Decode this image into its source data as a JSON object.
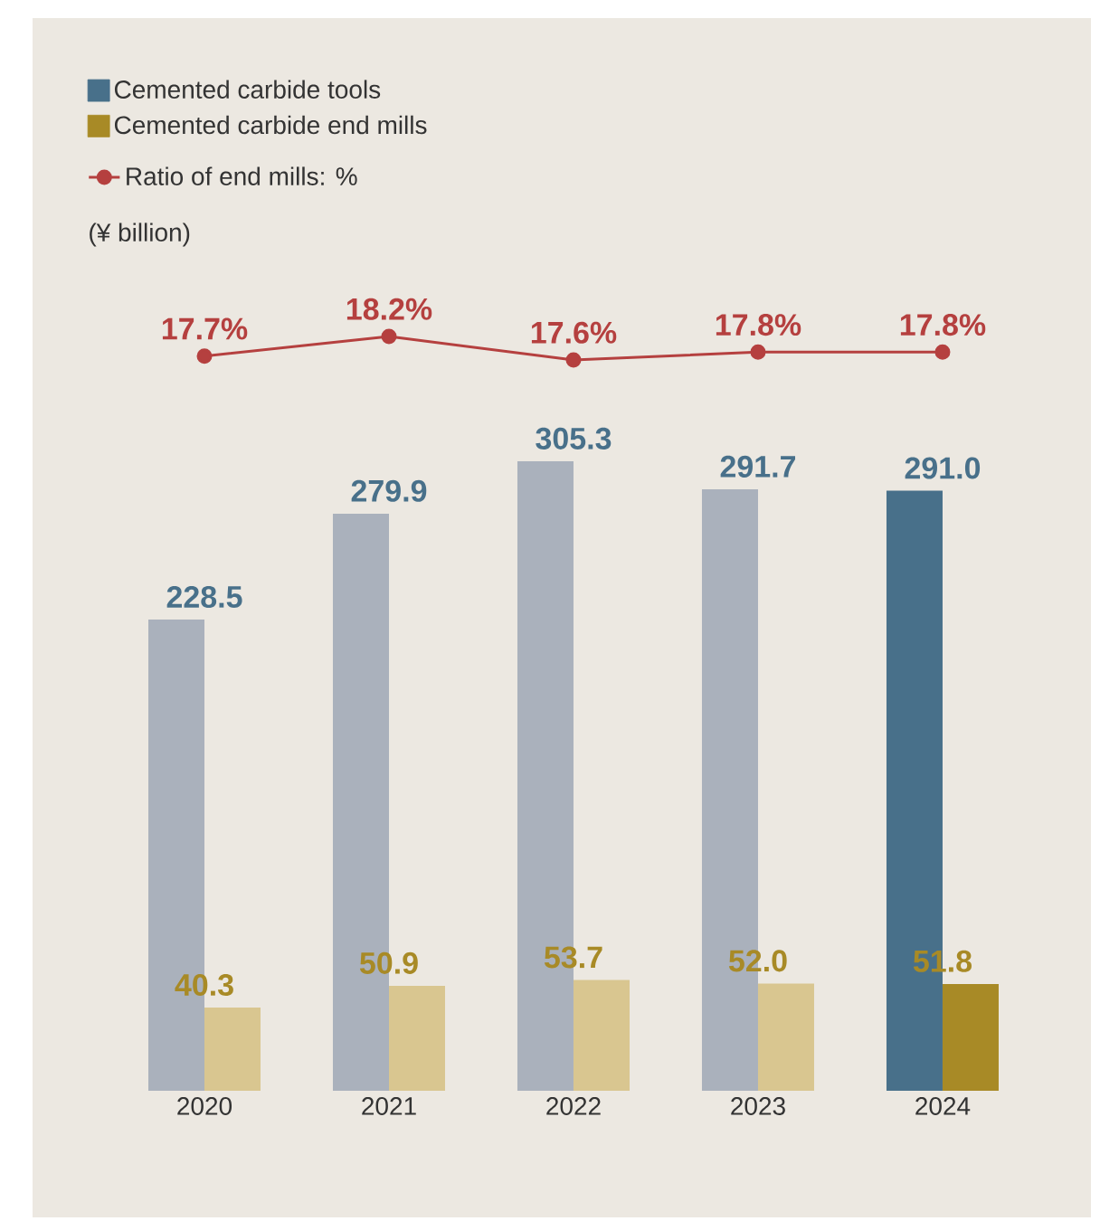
{
  "chart_data": [
    {
      "type": "line",
      "categories": [
        null,
        null,
        null,
        null,
        null
      ],
      "tick_labels": false,
      "marker": "circle",
      "legend": "top left",
      "series": [
        {
          "name": "Ratio of end mills: %",
          "color": "#b5403f",
          "values": [
            17.7,
            18.2,
            17.6,
            17.8,
            17.8
          ],
          "value_labels": [
            "17.7%",
            "18.2%",
            "17.6%",
            "17.8%",
            "17.8%"
          ]
        }
      ]
    },
    {
      "type": "bar",
      "annotations": [
        "(¥ billion)"
      ],
      "categories": [
        "2020",
        "2021",
        "2022",
        "2023",
        "2024"
      ],
      "legend": "top left",
      "tick_labels": "x",
      "series": [
        {
          "name": "Cemented carbide tools",
          "color": "#48708a",
          "colors": [
            "#aab1bc",
            "#aab1bc",
            "#aab1bc",
            "#aab1bc",
            "#48708a"
          ],
          "values": [
            228.5,
            279.9,
            305.3,
            291.7,
            291.0
          ],
          "value_labels": [
            "228.5",
            "279.9",
            "305.3",
            "291.7",
            "291.0"
          ]
        },
        {
          "name": "Cemented carbide end mills",
          "color": "#a88a26",
          "colors": [
            "#d9c690",
            "#d9c690",
            "#d9c690",
            "#d9c690",
            "#a88a26"
          ],
          "values": [
            40.3,
            50.9,
            53.7,
            52.0,
            51.8
          ],
          "value_labels": [
            "40.3",
            "50.9",
            "53.7",
            "52.0",
            "51.8"
          ]
        }
      ]
    }
  ]
}
